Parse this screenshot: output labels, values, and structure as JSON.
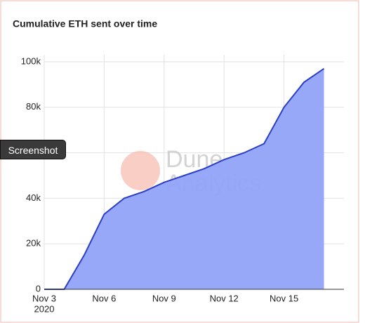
{
  "chart_data": {
    "type": "area",
    "title": "Cumulative ETH sent over time",
    "watermark": "Dune Analytics",
    "overlay_button": "Screenshot",
    "x": [
      "2020-11-03",
      "2020-11-04",
      "2020-11-05",
      "2020-11-06",
      "2020-11-07",
      "2020-11-08",
      "2020-11-09",
      "2020-11-10",
      "2020-11-11",
      "2020-11-12",
      "2020-11-13",
      "2020-11-14",
      "2020-11-15",
      "2020-11-16",
      "2020-11-17"
    ],
    "values": [
      0,
      0,
      15000,
      33000,
      40000,
      43000,
      47000,
      50000,
      53000,
      57000,
      60000,
      64000,
      80000,
      91000,
      97000
    ],
    "color": "#91a3f8",
    "line_color": "#2b3ec6",
    "xlim": [
      "2020-11-03",
      "2020-11-18"
    ],
    "xticks": [
      {
        "value": "2020-11-03",
        "label": "Nov 3",
        "sublabel": "2020"
      },
      {
        "value": "2020-11-06",
        "label": "Nov 6"
      },
      {
        "value": "2020-11-09",
        "label": "Nov 9"
      },
      {
        "value": "2020-11-12",
        "label": "Nov 12"
      },
      {
        "value": "2020-11-15",
        "label": "Nov 15"
      }
    ],
    "ylim": [
      0,
      100000
    ],
    "yticks": [
      0,
      {
        "value": 20000,
        "label": "20k"
      },
      {
        "value": 40000,
        "label": "40k"
      },
      {
        "value": 60000,
        "label": "60k"
      },
      {
        "value": 80000,
        "label": "80k"
      },
      {
        "value": 100000,
        "label": "100k"
      }
    ],
    "grid": true
  }
}
